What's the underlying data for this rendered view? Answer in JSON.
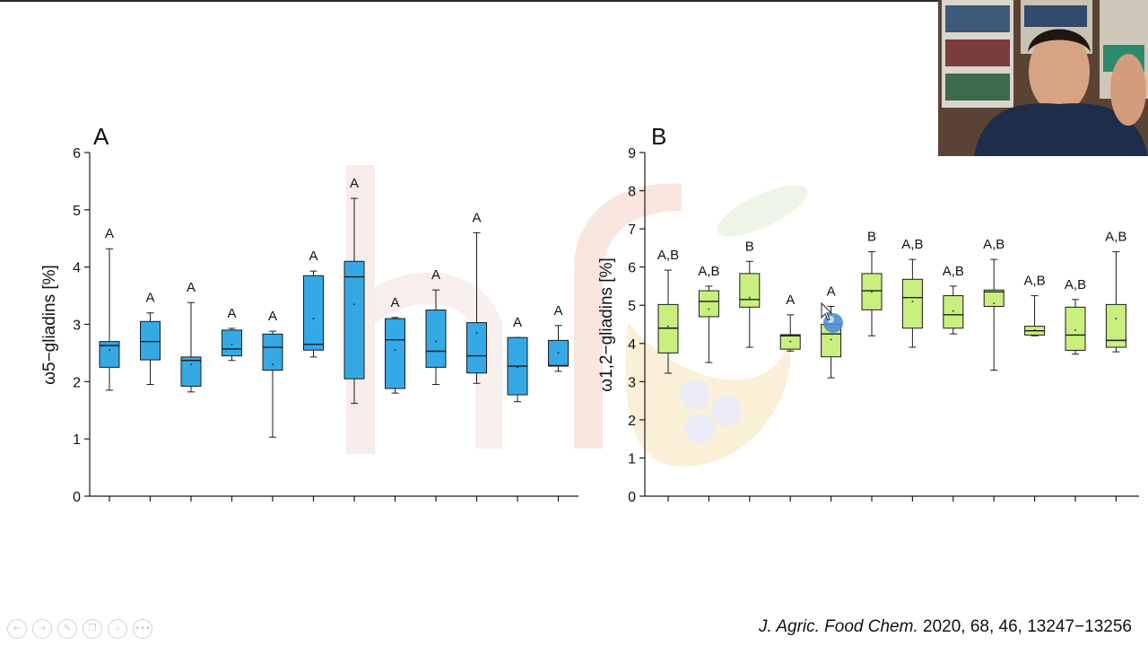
{
  "citation": {
    "journal": "J. Agric. Food Chem.",
    "details": " 2020, 68, 46, 13247−13256"
  },
  "nav_icons": [
    "prev-icon",
    "next-icon",
    "pen-icon",
    "copy-icon",
    "zoom-icon",
    "more-icon"
  ],
  "nav_glyphs": [
    "←",
    "→",
    "✎",
    "❐",
    "⌕",
    "•••"
  ],
  "colors": {
    "panel_a_fill": "#35a9e6",
    "panel_b_fill": "#c9ef7f",
    "box_stroke": "#1b1b1b",
    "watermark": "#e9c9c2"
  },
  "chart_data": [
    {
      "type": "box",
      "panel": "A",
      "ylabel": "ω5−gliadins [%]",
      "ylim": [
        0,
        6
      ],
      "yticks": [
        0,
        1,
        2,
        3,
        4,
        5,
        6
      ],
      "grid": false,
      "color": "#35a9e6",
      "boxes": [
        {
          "min": 1.85,
          "q1": 2.25,
          "median": 2.63,
          "q3": 2.7,
          "max": 4.32,
          "mean": 2.55,
          "label": "A"
        },
        {
          "min": 1.95,
          "q1": 2.38,
          "median": 2.7,
          "q3": 3.05,
          "max": 3.2,
          "mean": 2.7,
          "label": "A"
        },
        {
          "min": 1.82,
          "q1": 1.92,
          "median": 2.37,
          "q3": 2.43,
          "max": 3.38,
          "mean": 2.3,
          "label": "A"
        },
        {
          "min": 2.37,
          "q1": 2.45,
          "median": 2.57,
          "q3": 2.9,
          "max": 2.93,
          "mean": 2.65,
          "label": "A"
        },
        {
          "min": 1.03,
          "q1": 2.2,
          "median": 2.6,
          "q3": 2.83,
          "max": 2.88,
          "mean": 2.3,
          "label": "A"
        },
        {
          "min": 2.43,
          "q1": 2.55,
          "median": 2.65,
          "q3": 3.85,
          "max": 3.93,
          "mean": 3.1,
          "label": "A"
        },
        {
          "min": 1.62,
          "q1": 2.05,
          "median": 3.83,
          "q3": 4.1,
          "max": 5.2,
          "mean": 3.35,
          "label": "A"
        },
        {
          "min": 1.8,
          "q1": 1.88,
          "median": 2.73,
          "q3": 3.1,
          "max": 3.12,
          "mean": 2.55,
          "label": "A"
        },
        {
          "min": 1.95,
          "q1": 2.25,
          "median": 2.53,
          "q3": 3.25,
          "max": 3.6,
          "mean": 2.7,
          "label": "A"
        },
        {
          "min": 1.97,
          "q1": 2.15,
          "median": 2.45,
          "q3": 3.03,
          "max": 4.6,
          "mean": 2.85,
          "label": "A"
        },
        {
          "min": 1.65,
          "q1": 1.77,
          "median": 2.27,
          "q3": 2.77,
          "max": 2.77,
          "mean": 2.25,
          "label": "A"
        },
        {
          "min": 2.18,
          "q1": 2.27,
          "median": 2.28,
          "q3": 2.72,
          "max": 2.98,
          "mean": 2.5,
          "label": "A"
        }
      ]
    },
    {
      "type": "box",
      "panel": "B",
      "ylabel": "ω1,2−gliadins [%]",
      "ylim": [
        0,
        9
      ],
      "yticks": [
        0,
        1,
        2,
        3,
        4,
        5,
        6,
        7,
        8,
        9
      ],
      "grid": false,
      "color": "#c9ef7f",
      "boxes": [
        {
          "min": 3.22,
          "q1": 3.75,
          "median": 4.4,
          "q3": 5.02,
          "max": 5.92,
          "mean": 4.45,
          "label": "A,B"
        },
        {
          "min": 3.5,
          "q1": 4.7,
          "median": 5.1,
          "q3": 5.38,
          "max": 5.5,
          "mean": 4.9,
          "label": "A,B"
        },
        {
          "min": 3.9,
          "q1": 4.95,
          "median": 5.15,
          "q3": 5.83,
          "max": 6.15,
          "mean": 5.2,
          "label": "B"
        },
        {
          "min": 3.8,
          "q1": 3.85,
          "median": 4.2,
          "q3": 4.23,
          "max": 4.75,
          "mean": 4.05,
          "label": "A"
        },
        {
          "min": 3.1,
          "q1": 3.65,
          "median": 4.25,
          "q3": 4.5,
          "max": 4.97,
          "mean": 4.1,
          "label": "A"
        },
        {
          "min": 4.2,
          "q1": 4.88,
          "median": 5.38,
          "q3": 5.83,
          "max": 6.4,
          "mean": 5.35,
          "label": "B"
        },
        {
          "min": 3.9,
          "q1": 4.4,
          "median": 5.2,
          "q3": 5.68,
          "max": 6.2,
          "mean": 5.1,
          "label": "A,B"
        },
        {
          "min": 4.25,
          "q1": 4.4,
          "median": 4.75,
          "q3": 5.25,
          "max": 5.5,
          "mean": 4.85,
          "label": "A,B"
        },
        {
          "min": 3.3,
          "q1": 4.97,
          "median": 5.35,
          "q3": 5.4,
          "max": 6.2,
          "mean": 5.05,
          "label": "A,B"
        },
        {
          "min": 4.2,
          "q1": 4.22,
          "median": 4.33,
          "q3": 4.45,
          "max": 5.25,
          "mean": 4.35,
          "label": "A,B"
        },
        {
          "min": 3.72,
          "q1": 3.82,
          "median": 4.22,
          "q3": 4.95,
          "max": 5.15,
          "mean": 4.35,
          "label": "A,B"
        },
        {
          "min": 3.78,
          "q1": 3.9,
          "median": 4.08,
          "q3": 5.02,
          "max": 6.4,
          "mean": 4.65,
          "label": "A,B"
        }
      ]
    }
  ]
}
